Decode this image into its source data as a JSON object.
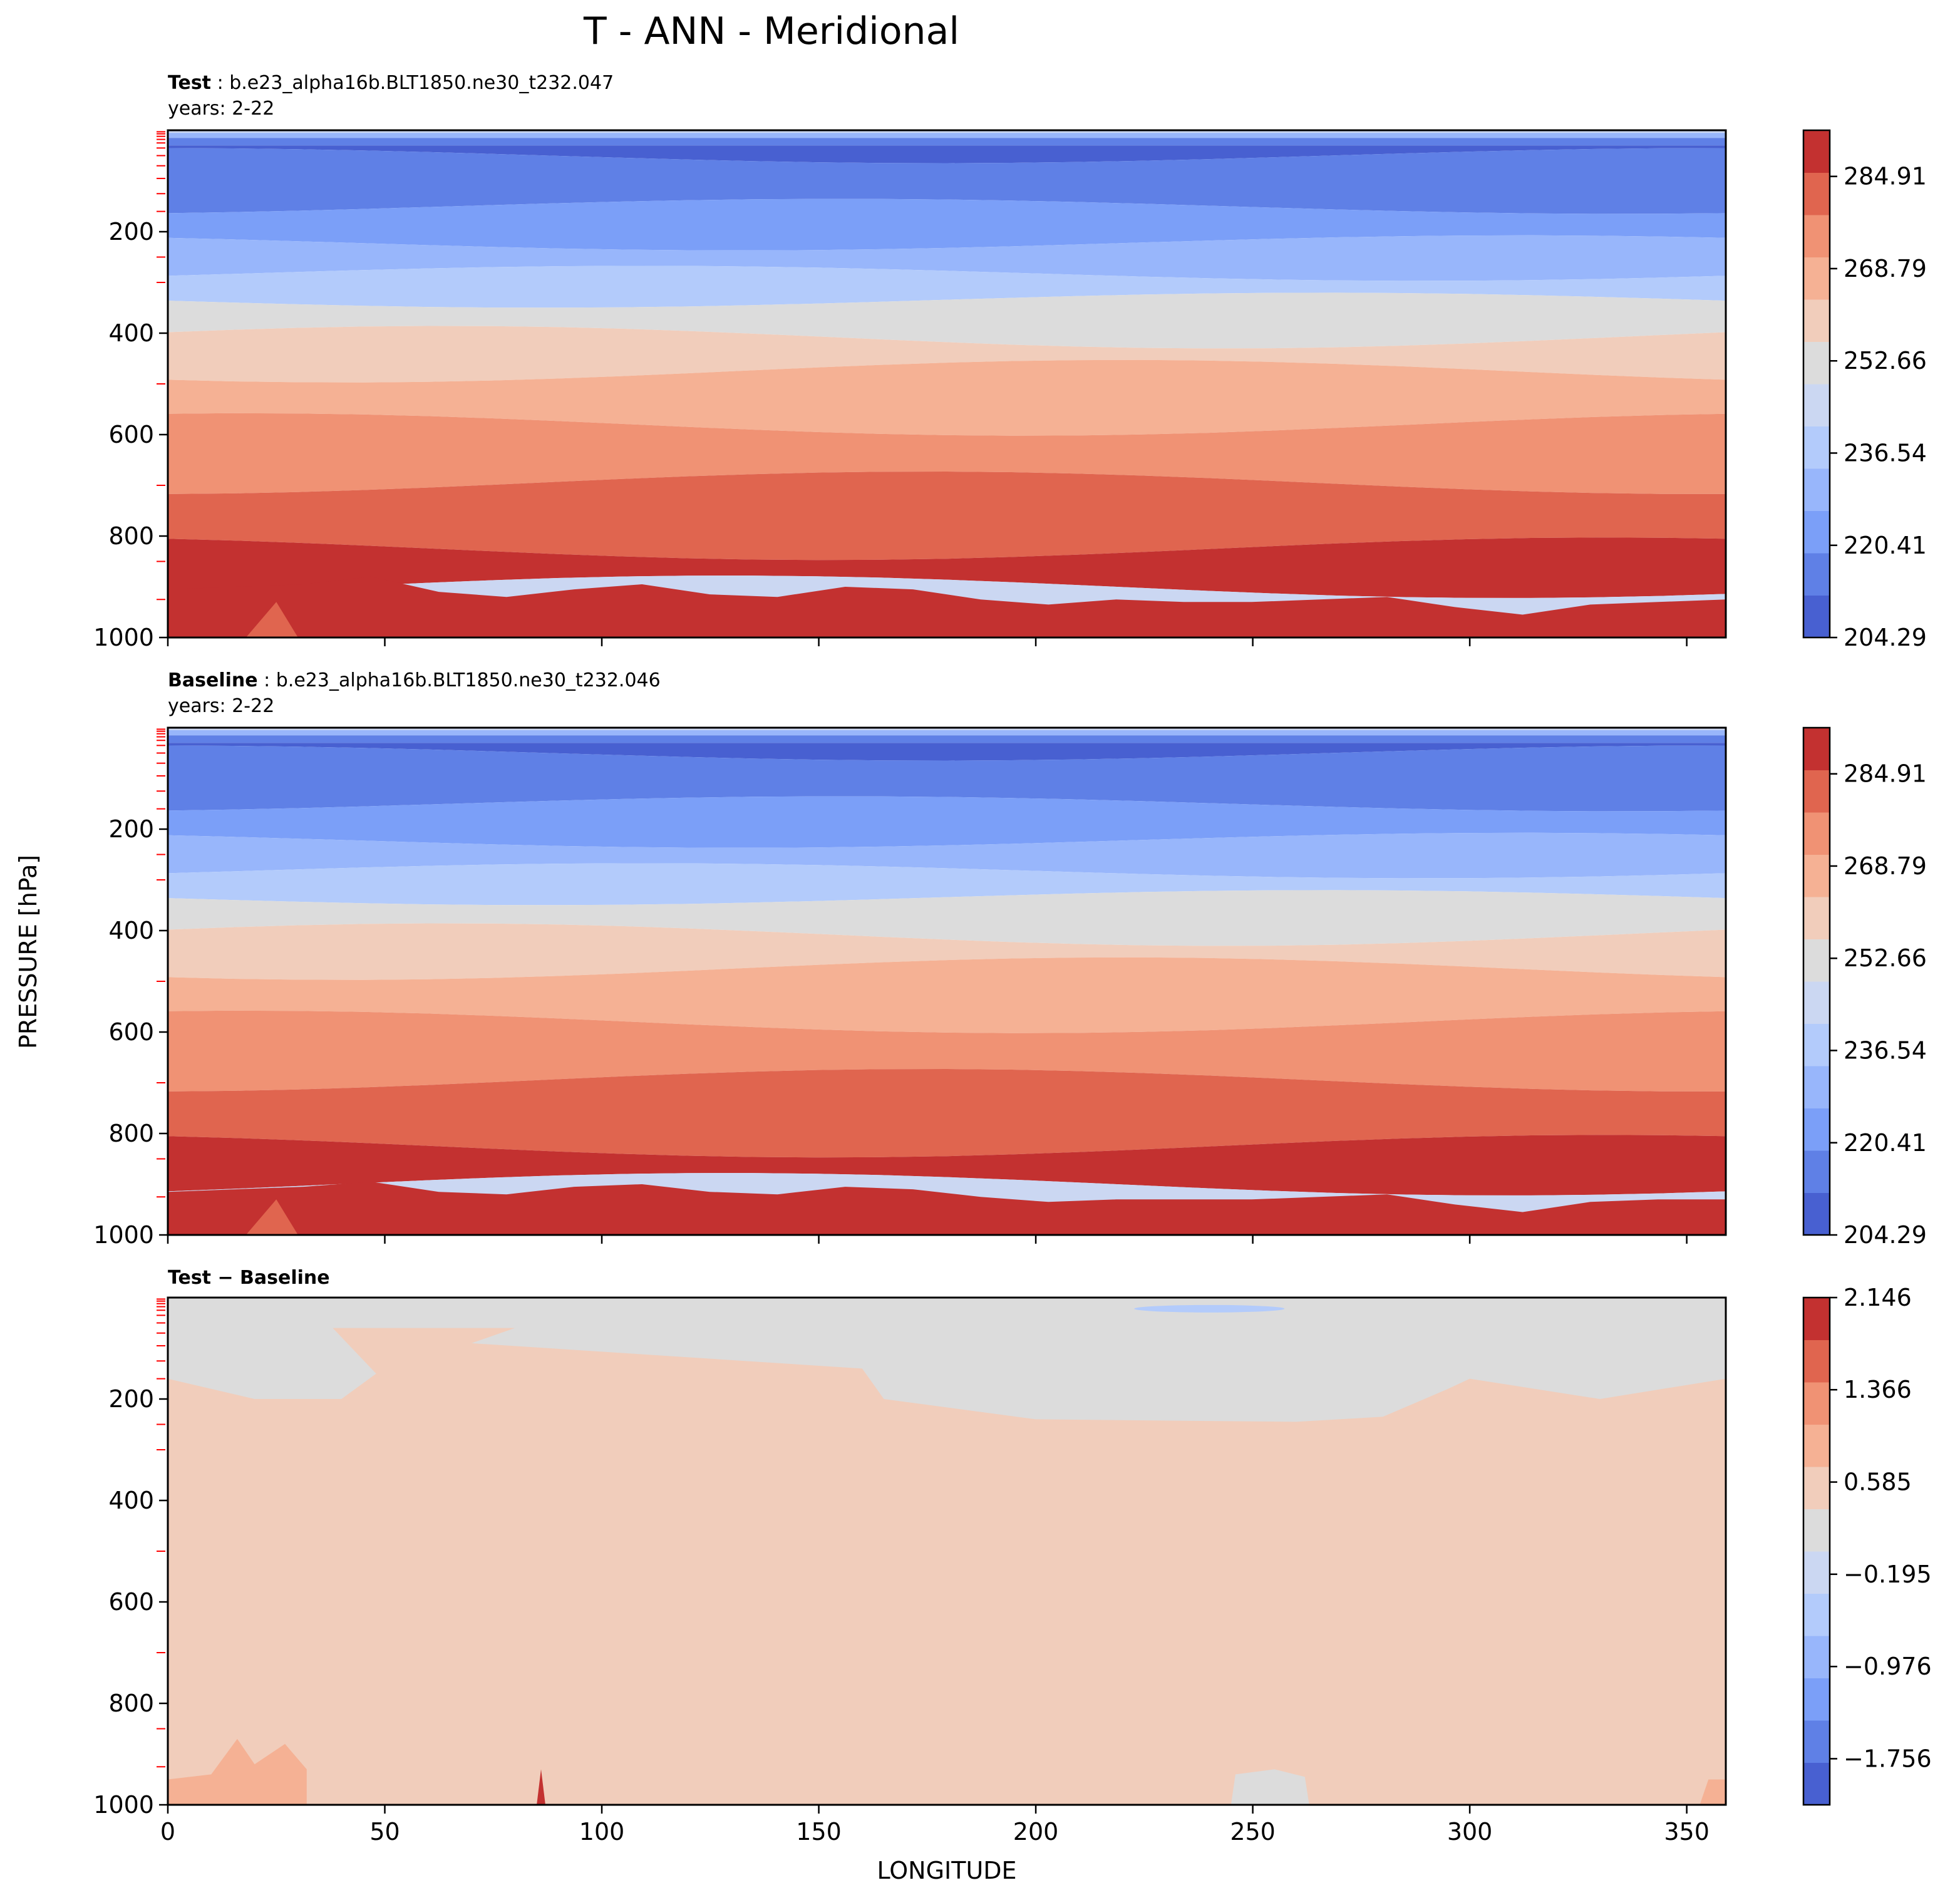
{
  "figure": {
    "title": "T - ANN - Meridional",
    "ylabel": "PRESSURE [hPa]",
    "xlabel": "LONGITUDE"
  },
  "colors": {
    "levels": [
      "#4860d1",
      "#5f80e6",
      "#7b9ff8",
      "#98b6fb",
      "#b3cbfb",
      "#cbd7f2",
      "#dcdcdc",
      "#f1cdbb",
      "#f5b194",
      "#f09274",
      "#e0654f",
      "#c33130"
    ]
  },
  "chart_data": [
    {
      "type": "contour",
      "panel": "test",
      "title_bold": "Test",
      "title_rest": ": b.e23_alpha16b.BLT1850.ne30_t232.047",
      "subtitle": "years: 2-22",
      "x_range": [
        0,
        359
      ],
      "y_range": [
        0,
        1000
      ],
      "y_inverted": true,
      "x_ticks": [
        0,
        50,
        100,
        150,
        200,
        250,
        300,
        350
      ],
      "x_ticks_labeled": false,
      "y_ticks": [
        "200",
        "400",
        "600",
        "800",
        "1000"
      ],
      "colorbar": {
        "levels": [
          204.29,
          212.35,
          220.41,
          228.48,
          236.54,
          244.6,
          252.66,
          260.73,
          268.79,
          276.85,
          284.91,
          292.98
        ],
        "tick_labels": [
          "284.91",
          "268.79",
          "252.66",
          "236.54",
          "220.41",
          "204.29"
        ]
      },
      "boundaries_hPa": [
        5,
        15,
        30,
        50,
        150,
        222,
        282,
        335,
        408,
        475,
        580,
        695,
        825,
        900
      ],
      "surface_boundary_hPa": [
        905,
        900,
        895,
        880,
        910,
        920,
        905,
        895,
        915,
        920,
        900,
        905,
        925,
        935,
        925,
        930,
        930,
        925,
        920,
        940,
        955,
        935,
        930,
        925
      ]
    },
    {
      "type": "contour",
      "panel": "baseline",
      "title_bold": "Baseline",
      "title_rest": ": b.e23_alpha16b.BLT1850.ne30_t232.046",
      "subtitle": "years: 2-22",
      "x_range": [
        0,
        359
      ],
      "y_range": [
        0,
        1000
      ],
      "y_inverted": true,
      "x_ticks": [
        0,
        50,
        100,
        150,
        200,
        250,
        300,
        350
      ],
      "x_ticks_labeled": false,
      "y_ticks": [
        "200",
        "400",
        "600",
        "800",
        "1000"
      ],
      "colorbar": {
        "levels": [
          204.29,
          212.35,
          220.41,
          228.48,
          236.54,
          244.6,
          252.66,
          260.73,
          268.79,
          276.85,
          284.91,
          292.98
        ],
        "tick_labels": [
          "284.91",
          "268.79",
          "252.66",
          "236.54",
          "220.41",
          "204.29"
        ]
      },
      "boundaries_hPa": [
        5,
        15,
        30,
        50,
        150,
        222,
        282,
        335,
        408,
        475,
        580,
        695,
        825,
        900
      ],
      "surface_boundary_hPa": [
        915,
        910,
        905,
        895,
        915,
        920,
        905,
        900,
        915,
        920,
        905,
        910,
        925,
        935,
        930,
        930,
        930,
        925,
        920,
        940,
        955,
        935,
        930,
        930
      ]
    },
    {
      "type": "contour",
      "panel": "difference",
      "title_bold": "Test − Baseline",
      "x_range": [
        0,
        359
      ],
      "y_range": [
        0,
        1000
      ],
      "y_inverted": true,
      "x_ticks": [
        "0",
        "50",
        "100",
        "150",
        "200",
        "250",
        "300",
        "350"
      ],
      "y_ticks": [
        "200",
        "400",
        "600",
        "800",
        "1000"
      ],
      "colorbar": {
        "levels": [
          -2.146,
          -1.756,
          -1.366,
          -0.976,
          -0.585,
          -0.195,
          0.195,
          0.585,
          0.976,
          1.366,
          1.756,
          2.146
        ],
        "tick_labels": [
          "2.146",
          "1.366",
          "0.585",
          "−0.195",
          "−0.976",
          "−1.756"
        ]
      },
      "description_regions": {
        "near_zero_upper": "values between -0.195 and 0.195 above ~160-245 hPa",
        "positive_bulk": "values between 0.195 and 0.585 below",
        "small_positive_near_surface": "0.585 to 0.976 near 0-30 and 355-359 lon"
      }
    }
  ]
}
